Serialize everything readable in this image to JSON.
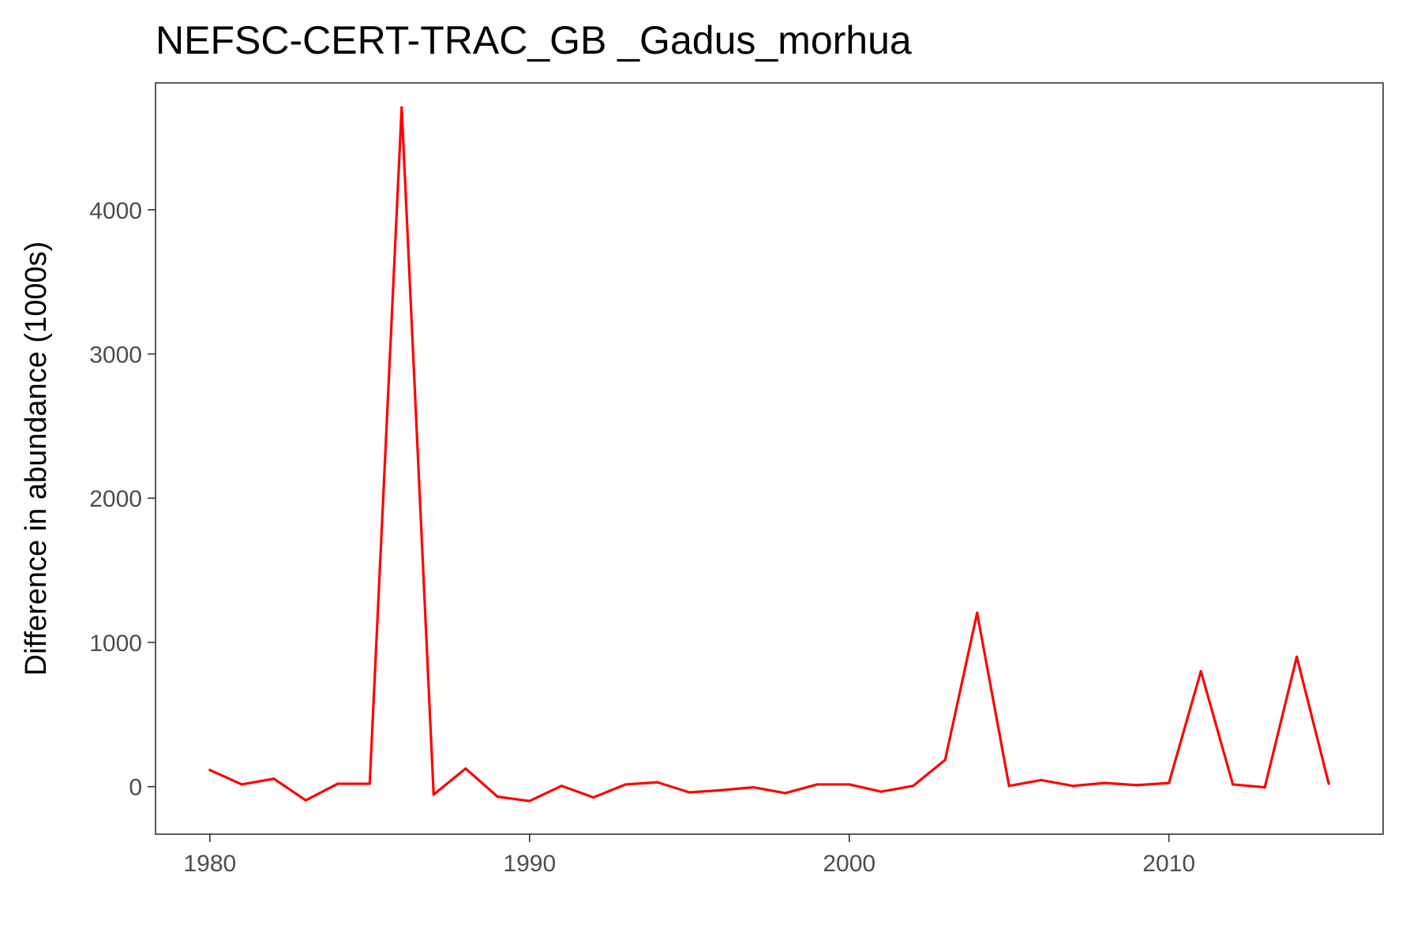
{
  "chart_data": {
    "type": "line",
    "title": "NEFSC-CERT-TRAC_GB _Gadus_morhua",
    "xlabel": "",
    "ylabel": "Difference in abundance (1000s)",
    "xlim": [
      1978.3,
      2016.7
    ],
    "ylim": [
      -330,
      4880
    ],
    "x_ticks": [
      1980,
      1990,
      2000,
      2010
    ],
    "y_ticks": [
      0,
      1000,
      2000,
      3000,
      4000
    ],
    "grid": false,
    "legend": "none",
    "series": [
      {
        "color": "#ff0000",
        "x": [
          1980,
          1981,
          1982,
          1983,
          1984,
          1985,
          1986,
          1987,
          1988,
          1989,
          1990,
          1991,
          1992,
          1993,
          1994,
          1995,
          1996,
          1997,
          1998,
          1999,
          2000,
          2001,
          2002,
          2003,
          2004,
          2005,
          2006,
          2007,
          2008,
          2009,
          2010,
          2011,
          2012,
          2013,
          2014,
          2015
        ],
        "y": [
          115,
          15,
          55,
          -95,
          20,
          20,
          4710,
          -55,
          125,
          -70,
          -100,
          5,
          -75,
          15,
          30,
          -40,
          -25,
          -5,
          -45,
          15,
          15,
          -35,
          5,
          185,
          1205,
          5,
          45,
          5,
          25,
          10,
          25,
          800,
          15,
          -5,
          900,
          20
        ]
      }
    ]
  }
}
